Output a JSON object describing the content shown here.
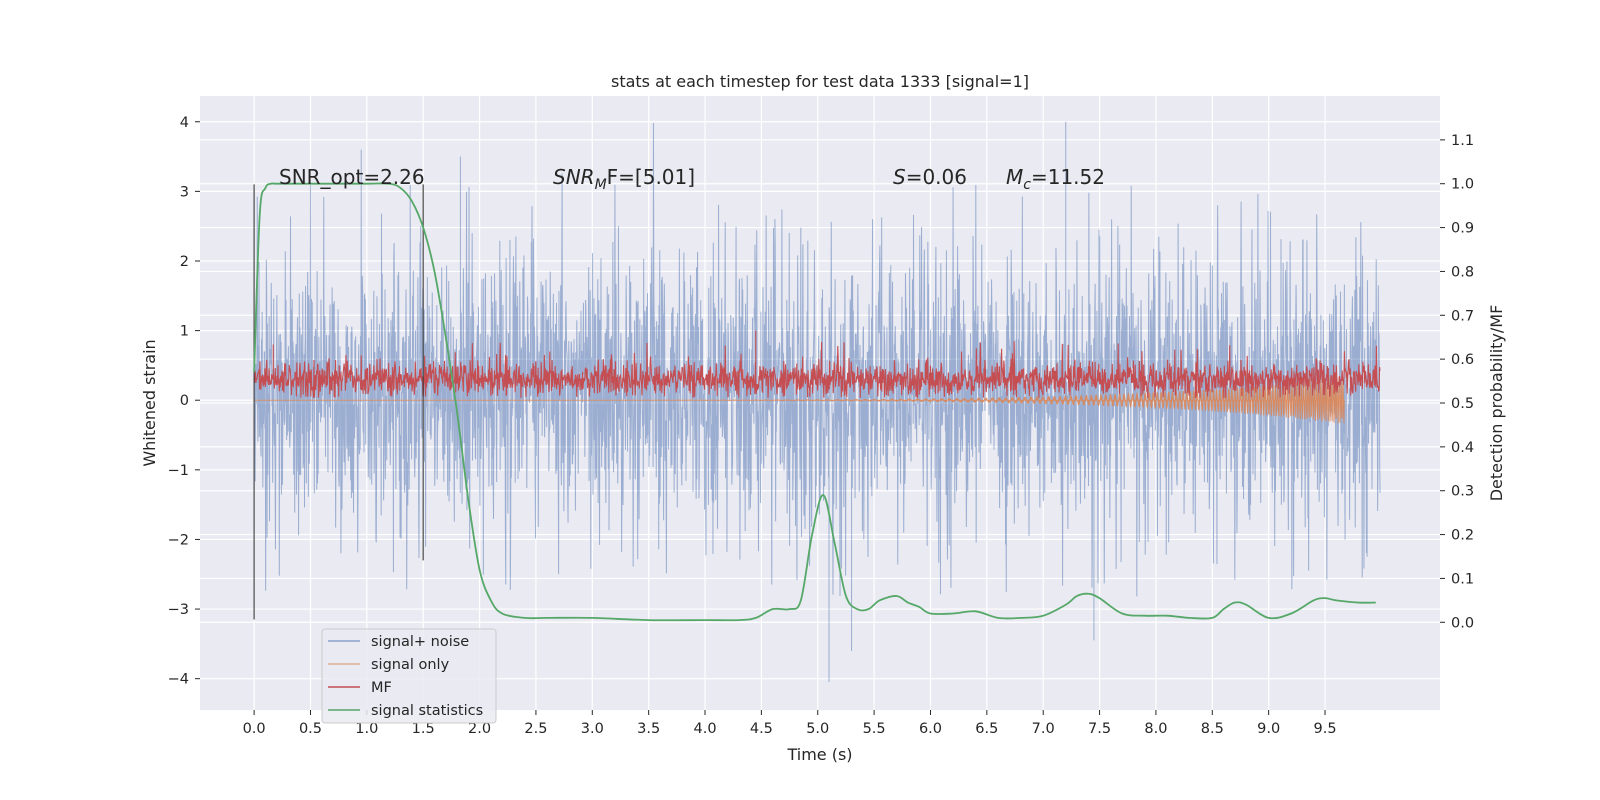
{
  "chart_data": {
    "type": "line",
    "title": "stats at each timestep for test data 1333 [signal=1]",
    "xlabel": "Time (s)",
    "ylabel": "Whitened strain",
    "y2label": "Detection probability/MF",
    "xlim": [
      -0.48,
      10.52
    ],
    "ylim": [
      -4.45,
      4.37
    ],
    "y2lim": [
      -0.2,
      1.2
    ],
    "xticks": [
      0.0,
      0.5,
      1.0,
      1.5,
      2.0,
      2.5,
      3.0,
      3.5,
      4.0,
      4.5,
      5.0,
      5.5,
      6.0,
      6.5,
      7.0,
      7.5,
      8.0,
      8.5,
      9.0,
      9.5
    ],
    "xtick_labels": [
      "0.0",
      "0.5",
      "1.0",
      "1.5",
      "2.0",
      "2.5",
      "3.0",
      "3.5",
      "4.0",
      "4.5",
      "5.0",
      "5.5",
      "6.0",
      "6.5",
      "7.0",
      "7.5",
      "8.0",
      "8.5",
      "9.0",
      "9.5"
    ],
    "yticks": [
      -4,
      -3,
      -2,
      -1,
      0,
      1,
      2,
      3,
      4
    ],
    "ytick_labels": [
      "−4",
      "−3",
      "−2",
      "−1",
      "0",
      "1",
      "2",
      "3",
      "4"
    ],
    "y2ticks": [
      0.0,
      0.1,
      0.2,
      0.3,
      0.4,
      0.5,
      0.6,
      0.7,
      0.8,
      0.9,
      1.0,
      1.1
    ],
    "y2tick_labels": [
      "0.0",
      "0.1",
      "0.2",
      "0.3",
      "0.4",
      "0.5",
      "0.6",
      "0.7",
      "0.8",
      "0.9",
      "1.0",
      "1.1"
    ],
    "grid": true,
    "legend_position": "lower-left",
    "background": "#eaeaf2",
    "annotations": {
      "snr_opt": "SNR_opt=2.26",
      "snr_mf_name": "SNR",
      "snr_mf_sub": "M",
      "snr_mf_rest": "F=[5.01]",
      "s_name": "S",
      "s_rest": "=0.06",
      "mc_name": "M",
      "mc_sub": "c",
      "mc_rest": "=11.52"
    },
    "markers": [
      {
        "x": 0.0,
        "y_range": [
          -3.15,
          3.1
        ]
      },
      {
        "x": 1.5,
        "y_range": [
          -2.3,
          3.1
        ]
      }
    ],
    "series": [
      {
        "name": "signal+ noise",
        "axis": "left",
        "color": "#4c72b0",
        "style": "noise band",
        "x_range": [
          0.0,
          9.99
        ],
        "typical_range": [
          -1.5,
          1.8
        ],
        "peaks": [
          [
            0.95,
            3.6
          ],
          [
            1.83,
            3.5
          ],
          [
            7.2,
            4.0
          ],
          [
            5.1,
            -4.05
          ],
          [
            5.3,
            -3.6
          ],
          [
            7.45,
            -3.45
          ]
        ]
      },
      {
        "name": "signal only",
        "axis": "left",
        "color": "#dd8452",
        "style": "chirp",
        "x_range": [
          0.0,
          9.67
        ],
        "amplitude_end": 0.35
      },
      {
        "name": "MF",
        "axis": "left",
        "color": "#c44e52",
        "style": "positive noise",
        "x_range": [
          0.0,
          9.99
        ],
        "typical_range": [
          0.05,
          0.55
        ],
        "peaks": [
          [
            4.45,
            1.0
          ],
          [
            0.17,
            0.8
          ]
        ]
      },
      {
        "name": "signal statistics",
        "axis": "right",
        "color": "#55a868",
        "x": [
          0.0,
          0.05,
          0.1,
          0.15,
          0.2,
          0.4,
          0.7,
          1.0,
          1.2,
          1.3,
          1.4,
          1.5,
          1.6,
          1.7,
          1.8,
          1.9,
          2.0,
          2.1,
          2.2,
          2.4,
          2.6,
          3.0,
          3.5,
          4.0,
          4.3,
          4.45,
          4.6,
          4.75,
          4.85,
          4.95,
          5.05,
          5.15,
          5.25,
          5.35,
          5.45,
          5.55,
          5.7,
          5.8,
          5.9,
          6.0,
          6.2,
          6.4,
          6.6,
          6.8,
          7.0,
          7.2,
          7.3,
          7.4,
          7.5,
          7.7,
          7.9,
          8.1,
          8.3,
          8.5,
          8.6,
          8.7,
          8.8,
          9.0,
          9.2,
          9.4,
          9.5,
          9.6,
          9.8,
          9.95
        ],
        "y": [
          0.57,
          0.93,
          0.99,
          1.0,
          1.0,
          1.0,
          1.0,
          1.0,
          1.0,
          0.99,
          0.96,
          0.9,
          0.8,
          0.65,
          0.48,
          0.28,
          0.12,
          0.05,
          0.02,
          0.01,
          0.01,
          0.01,
          0.005,
          0.005,
          0.005,
          0.01,
          0.03,
          0.03,
          0.05,
          0.2,
          0.29,
          0.18,
          0.06,
          0.03,
          0.03,
          0.05,
          0.06,
          0.045,
          0.035,
          0.02,
          0.02,
          0.025,
          0.01,
          0.01,
          0.015,
          0.04,
          0.06,
          0.065,
          0.055,
          0.02,
          0.015,
          0.015,
          0.01,
          0.01,
          0.03,
          0.045,
          0.04,
          0.01,
          0.02,
          0.05,
          0.055,
          0.05,
          0.045,
          0.045
        ]
      }
    ]
  }
}
